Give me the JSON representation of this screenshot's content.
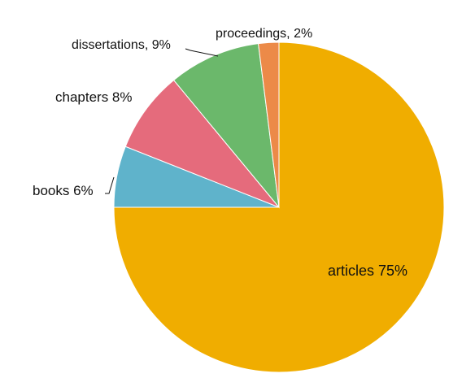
{
  "chart_data": {
    "type": "pie",
    "title": "",
    "start_angle_deg": 0,
    "direction": "clockwise",
    "slices": [
      {
        "label": "articles",
        "value": 75,
        "display": "articles 75%",
        "color": "#f0ad00"
      },
      {
        "label": "books",
        "value": 6,
        "display": "books 6%",
        "color": "#5fb3cb"
      },
      {
        "label": "chapters",
        "value": 8,
        "display": "chapters 8%",
        "color": "#e56b7c"
      },
      {
        "label": "dissertations",
        "value": 9,
        "display": "dissertations, 9%",
        "color": "#6bb86b"
      },
      {
        "label": "proceedings",
        "value": 2,
        "display": "proceedings, 2%",
        "color": "#ec8a48"
      }
    ],
    "legend": "none",
    "labels": "data labels on and around slices"
  }
}
